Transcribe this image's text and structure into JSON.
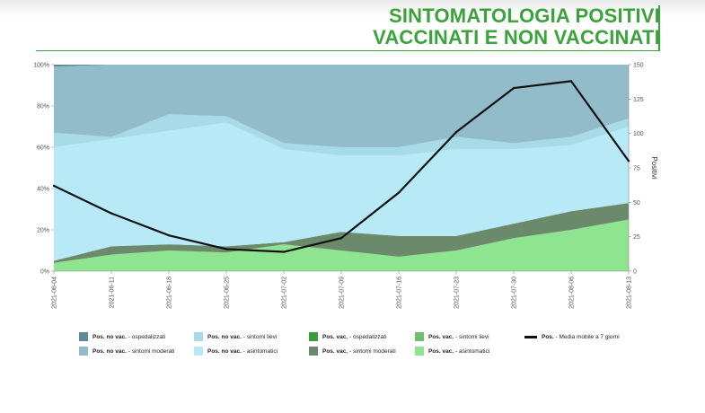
{
  "title": {
    "line1": "SINTOMATOLOGIA POSITIVI",
    "line2": "VACCINATI E NON VACCINATI"
  },
  "chart_data": {
    "type": "area",
    "x": [
      "2021-06-04",
      "2021-06-11",
      "2021-06-18",
      "2021-06-25",
      "2021-07-02",
      "2021-07-09",
      "2021-07-16",
      "2021-07-23",
      "2021-07-30",
      "2021-08-06",
      "2021-08-13"
    ],
    "x_tick_labels": [
      "2021-06-04",
      "2021-06-11",
      "2021-06-18",
      "2021-06-25",
      "2021-07-02",
      "2021-07-09",
      "2021-07-16",
      "2021-07-23",
      "2021-07-30",
      "2021-08-06",
      "2021-08-13"
    ],
    "y_left_ticks": [
      "0%",
      "20%",
      "40%",
      "60%",
      "80%",
      "100%"
    ],
    "y_right_ticks": [
      "0",
      "25",
      "50",
      "75",
      "100",
      "125",
      "150"
    ],
    "ylabel_right": "Positivi",
    "ylim_left": [
      0,
      100
    ],
    "ylim_right": [
      0,
      150
    ],
    "stacked_series_percent": [
      {
        "name": "Pos. vac. - asintomatici",
        "color": "#8fe58f",
        "values": [
          4,
          8,
          10,
          9,
          13,
          10,
          7,
          10,
          16,
          20,
          25
        ]
      },
      {
        "name": "Pos. vac. - sintomi moderati",
        "color": "#6b8a6b",
        "values": [
          1,
          4,
          3,
          3,
          1,
          9,
          10,
          7,
          7,
          9,
          8
        ]
      },
      {
        "name": "Pos. vac. - sintomi lievi",
        "color": "#6dbf6d",
        "values": [
          0,
          0,
          0,
          0,
          0,
          0,
          0,
          0,
          0,
          0,
          0
        ]
      },
      {
        "name": "Pos. vac. - ospedalizzati",
        "color": "#3e9a3e",
        "values": [
          0,
          0,
          0,
          0,
          0,
          0,
          0,
          0,
          0,
          0,
          0
        ]
      },
      {
        "name": "Pos. no vac. - asintomatici",
        "color": "#b7e9f7",
        "values": [
          55,
          52,
          55,
          60,
          45,
          37,
          39,
          42,
          36,
          32,
          37
        ]
      },
      {
        "name": "Pos. no vac. - sintomi lievi",
        "color": "#a8dbe8",
        "values": [
          7,
          1,
          8,
          3,
          3,
          4,
          4,
          6,
          3,
          4,
          4
        ]
      },
      {
        "name": "Pos. no vac. - sintomi moderati",
        "color": "#93bccb",
        "values": [
          32,
          35,
          24,
          25,
          38,
          40,
          40,
          35,
          38,
          35,
          26
        ]
      },
      {
        "name": "Pos. no vac. - ospedalizzati",
        "color": "#5f8a94",
        "values": [
          1,
          0,
          0,
          0,
          0,
          0,
          0,
          0,
          0,
          0,
          0
        ]
      }
    ],
    "line_series": {
      "name": "Pos. - Media mobile a 7 giorni",
      "color": "#111111",
      "values": [
        62,
        42,
        26,
        16,
        14,
        24,
        57,
        101,
        133,
        138,
        80
      ]
    },
    "legend_position": "bottom",
    "grid": false
  },
  "legend": [
    {
      "bold": "Pos. no vac.",
      "rest": " - ospedalizzati",
      "color": "#5f8a94",
      "kind": "swatch"
    },
    {
      "bold": "Pos. no vac.",
      "rest": " - sintomi lievi",
      "color": "#a8dbe8",
      "kind": "swatch"
    },
    {
      "bold": "Pos. vac.",
      "rest": " - ospedalizzati",
      "color": "#3e9a3e",
      "kind": "swatch"
    },
    {
      "bold": "Pos. vac.",
      "rest": " - sintomi lievi",
      "color": "#6dbf6d",
      "kind": "swatch"
    },
    {
      "bold": "Pos.",
      "rest": " - Media mobile a 7 giorni",
      "color": "#111111",
      "kind": "line"
    },
    {
      "bold": "Pos. no vac.",
      "rest": " - sintomi moderati",
      "color": "#93bccb",
      "kind": "swatch"
    },
    {
      "bold": "Pos. no vac.",
      "rest": " - asintomatici",
      "color": "#b7e9f7",
      "kind": "swatch"
    },
    {
      "bold": "Pos. vac.",
      "rest": " - sintomi moderati",
      "color": "#6b8a6b",
      "kind": "swatch"
    },
    {
      "bold": "Pos. vac.",
      "rest": " - asintomatici",
      "color": "#8fe58f",
      "kind": "swatch"
    }
  ]
}
